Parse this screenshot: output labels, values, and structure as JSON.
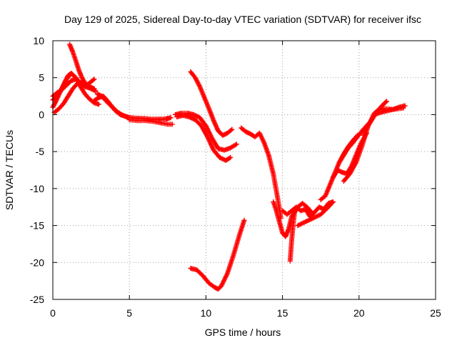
{
  "chart_data": {
    "type": "scatter",
    "title": "Day 129 of 2025, Sidereal Day-to-day VTEC variation (SDTVAR) for receiver ifsc",
    "xlabel": "GPS time / hours",
    "ylabel": "SDTVAR / TECUs",
    "xlim": [
      0,
      25
    ],
    "ylim": [
      -25,
      10
    ],
    "xticks": [
      0,
      5,
      10,
      15,
      20,
      25
    ],
    "yticks": [
      10,
      5,
      0,
      -5,
      -10,
      -15,
      -20,
      -25
    ],
    "grid": true,
    "marker": "+",
    "color": "#ff0000",
    "series": [
      {
        "x": [
          0.0,
          0.2,
          0.5,
          0.8,
          1.0,
          1.2,
          1.5,
          1.8,
          2.1,
          2.4,
          2.7,
          3.0
        ],
        "y": [
          1.0,
          1.8,
          3.2,
          4.5,
          5.3,
          5.6,
          5.0,
          3.8,
          2.8,
          2.1,
          1.6,
          1.4
        ]
      },
      {
        "x": [
          0.0,
          0.3,
          0.6,
          0.9,
          1.2,
          1.5,
          1.8,
          2.1,
          2.4,
          2.7
        ],
        "y": [
          2.5,
          3.0,
          3.4,
          4.0,
          4.6,
          4.8,
          4.3,
          3.8,
          3.6,
          3.5
        ]
      },
      {
        "x": [
          0.1,
          0.4,
          0.7,
          1.0,
          1.3,
          1.6,
          1.9,
          2.2,
          2.5,
          2.8
        ],
        "y": [
          0.3,
          0.8,
          1.5,
          2.5,
          3.5,
          4.2,
          4.4,
          4.1,
          3.5,
          3.2
        ]
      },
      {
        "x": [
          1.1,
          1.3,
          1.5,
          1.7,
          1.9,
          2.1,
          2.4,
          2.7
        ],
        "y": [
          9.5,
          8.5,
          7.3,
          6.0,
          5.0,
          4.3,
          3.8,
          3.5
        ]
      },
      {
        "x": [
          0.0,
          0.3,
          0.6,
          0.9,
          1.2,
          1.5,
          1.8,
          2.1,
          2.4,
          2.7
        ],
        "y": [
          2.0,
          2.5,
          3.5,
          4.8,
          5.6,
          5.0,
          4.2,
          3.8,
          4.3,
          4.8
        ]
      },
      {
        "x": [
          2.7,
          3.0,
          3.3,
          3.6,
          3.9,
          4.2,
          4.5,
          4.8,
          5.1,
          5.5,
          6.0,
          6.5,
          7.0,
          7.5
        ],
        "y": [
          1.9,
          2.3,
          2.5,
          1.8,
          1.0,
          0.4,
          0.0,
          -0.3,
          -0.4,
          -0.5,
          -0.6,
          -0.7,
          -0.7,
          -0.5
        ]
      },
      {
        "x": [
          2.9,
          3.2,
          3.5,
          3.8,
          4.1,
          4.4,
          4.7,
          5.0,
          5.4,
          5.9,
          6.4,
          6.9,
          7.4,
          7.7
        ],
        "y": [
          2.8,
          2.5,
          1.8,
          1.2,
          0.5,
          0.0,
          -0.2,
          -0.4,
          -0.5,
          -0.5,
          -0.6,
          -0.6,
          -0.6,
          -0.4
        ]
      },
      {
        "x": [
          5.0,
          5.5,
          6.0,
          6.5,
          7.0,
          7.5,
          7.8
        ],
        "y": [
          -0.7,
          -0.8,
          -0.8,
          -0.9,
          -1.1,
          -1.3,
          -1.3
        ]
      },
      {
        "x": [
          8.0,
          8.4,
          8.8,
          9.2,
          9.6,
          10.0,
          10.4,
          10.8,
          11.2,
          11.6,
          12.0
        ],
        "y": [
          0.0,
          0.2,
          0.2,
          0.0,
          -0.4,
          -1.5,
          -3.2,
          -4.6,
          -4.8,
          -4.5,
          -4.0
        ]
      },
      {
        "x": [
          8.1,
          8.5,
          8.9,
          9.3,
          9.7,
          10.1,
          10.5,
          10.9,
          11.3,
          11.6
        ],
        "y": [
          -0.3,
          -0.1,
          -0.3,
          -0.7,
          -1.5,
          -3.0,
          -4.8,
          -5.8,
          -6.2,
          -5.8
        ]
      },
      {
        "x": [
          9.0,
          9.3,
          9.6,
          9.9,
          10.2,
          10.5,
          10.8,
          11.1,
          11.4,
          11.7
        ],
        "y": [
          5.8,
          5.0,
          3.8,
          2.3,
          0.8,
          -0.8,
          -2.2,
          -2.8,
          -2.5,
          -2.0
        ]
      },
      {
        "x": [
          12.3,
          12.6,
          12.9,
          13.2,
          13.5,
          13.8,
          14.1,
          14.4,
          14.7,
          14.9
        ],
        "y": [
          -1.8,
          -2.3,
          -2.6,
          -3.0,
          -2.5,
          -3.8,
          -5.5,
          -8.0,
          -11.5,
          -14.0
        ]
      },
      {
        "x": [
          14.4,
          14.6,
          14.8,
          15.0,
          15.2,
          15.4,
          15.6,
          15.8,
          16.0,
          16.3,
          16.6,
          16.9
        ],
        "y": [
          -11.8,
          -13.0,
          -14.5,
          -16.0,
          -16.5,
          -15.5,
          -13.8,
          -13.2,
          -12.5,
          -12.0,
          -12.5,
          -13.2
        ]
      },
      {
        "x": [
          15.0,
          15.3,
          15.6,
          15.9,
          16.2,
          16.5,
          16.8,
          17.1,
          17.4,
          17.7,
          18.0,
          18.3
        ],
        "y": [
          -13.0,
          -13.5,
          -13.0,
          -12.5,
          -13.0,
          -12.8,
          -13.8,
          -13.2,
          -12.5,
          -12.8,
          -12.0,
          -11.8
        ]
      },
      {
        "x": [
          15.5,
          15.6,
          15.7,
          15.8
        ],
        "y": [
          -19.8,
          -17.0,
          -14.8,
          -13.0
        ]
      },
      {
        "x": [
          16.0,
          16.5,
          17.0,
          17.5,
          18.0,
          18.3
        ],
        "y": [
          -15.0,
          -14.5,
          -14.0,
          -13.5,
          -12.5,
          -11.8
        ]
      },
      {
        "x": [
          17.5,
          17.8,
          18.1,
          18.4,
          18.7,
          19.0,
          19.3,
          19.6,
          19.9
        ],
        "y": [
          -11.5,
          -11.0,
          -9.5,
          -8.0,
          -6.5,
          -5.3,
          -4.3,
          -3.5,
          -2.8
        ]
      },
      {
        "x": [
          18.3,
          18.6,
          18.9,
          19.2,
          19.5,
          19.8,
          20.1,
          20.5
        ],
        "y": [
          -8.5,
          -7.5,
          -7.8,
          -8.0,
          -7.0,
          -5.5,
          -4.0,
          -2.5
        ]
      },
      {
        "x": [
          18.7,
          19.0,
          19.3,
          19.6,
          19.9,
          20.2,
          20.5,
          20.8
        ],
        "y": [
          -6.5,
          -5.5,
          -4.5,
          -3.8,
          -3.0,
          -2.2,
          -1.5,
          -0.8
        ]
      },
      {
        "x": [
          19.0,
          19.4,
          19.8,
          20.2,
          20.6,
          21.0,
          21.4,
          21.8,
          22.2,
          22.6,
          22.9
        ],
        "y": [
          -9.0,
          -8.0,
          -6.5,
          -4.2,
          -1.5,
          0.2,
          0.8,
          0.8,
          0.7,
          0.8,
          0.9
        ]
      },
      {
        "x": [
          20.3,
          20.6,
          20.9,
          21.2,
          21.5,
          21.8
        ],
        "y": [
          -2.8,
          -1.5,
          -0.5,
          0.5,
          1.2,
          1.8
        ]
      },
      {
        "x": [
          21.0,
          21.4,
          21.8,
          22.2,
          22.6,
          23.0
        ],
        "y": [
          0.0,
          0.3,
          0.5,
          0.7,
          1.0,
          1.2
        ]
      },
      {
        "x": [
          9.0,
          9.4,
          9.8,
          10.2,
          10.6,
          10.8,
          11.0,
          11.4,
          11.8,
          12.2,
          12.5
        ],
        "y": [
          -20.8,
          -21.0,
          -21.8,
          -22.8,
          -23.4,
          -23.6,
          -23.2,
          -21.5,
          -19.0,
          -16.2,
          -14.3
        ]
      }
    ]
  }
}
